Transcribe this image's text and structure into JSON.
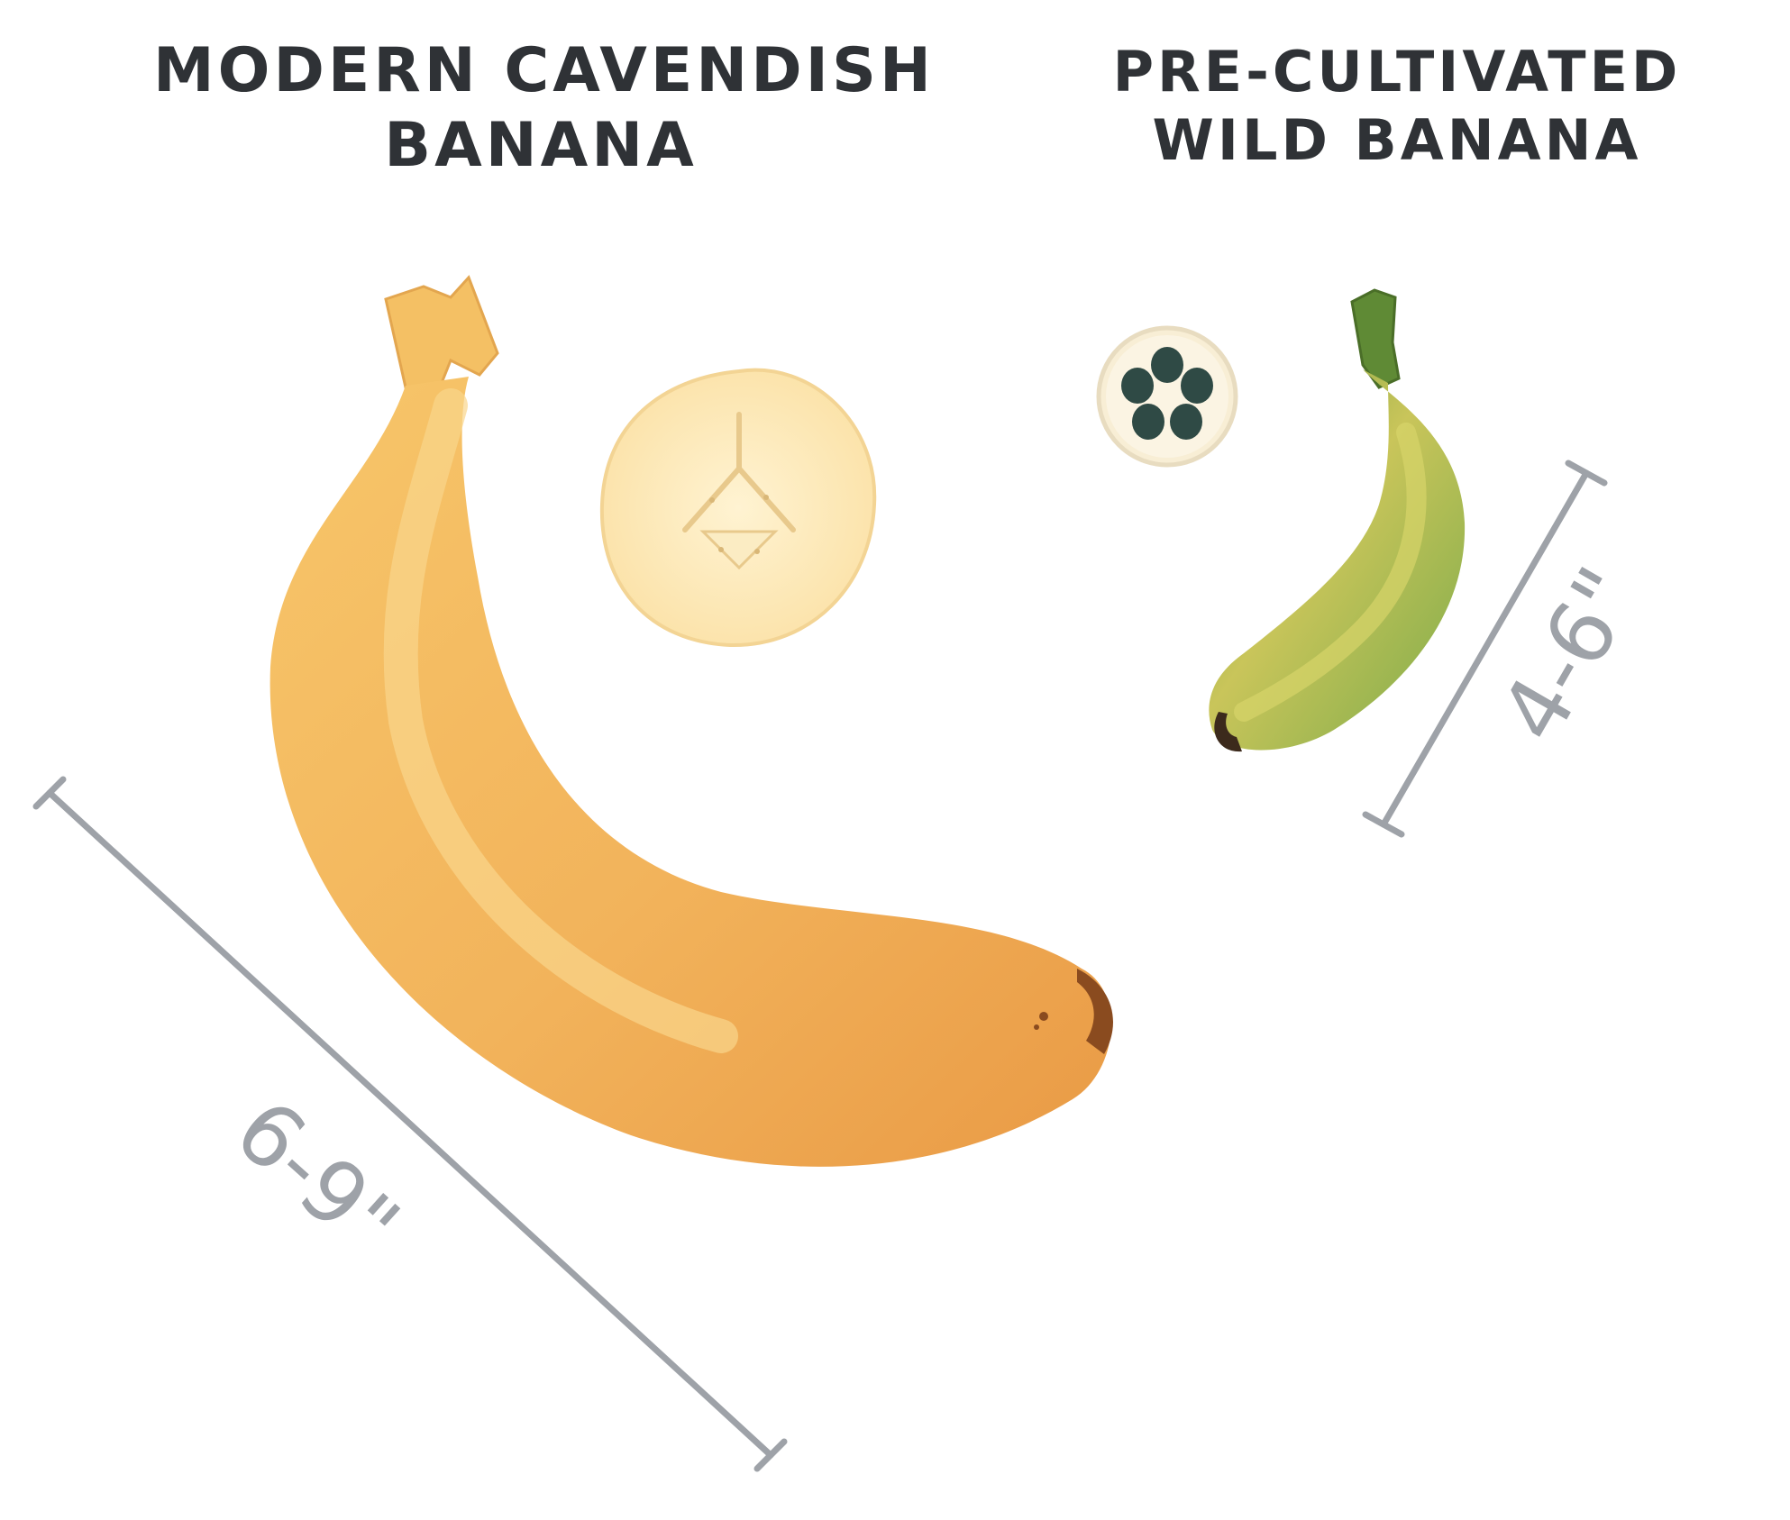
{
  "cavendish": {
    "title_line1": "MODERN CAVENDISH",
    "title_line2": "BANANA",
    "size_label": "6-9\"",
    "peel_color": "#f2b35b",
    "slice_color": "#fde8b4"
  },
  "wild": {
    "title_line1": "PRE-CULTIVATED",
    "title_line2": "WILD BANANA",
    "size_label": "4-6\"",
    "peel_color": "#bfc257",
    "seed_color": "#2f4a45"
  },
  "colors": {
    "title_text": "#2f3236",
    "measure_line": "#9ea2a8"
  }
}
